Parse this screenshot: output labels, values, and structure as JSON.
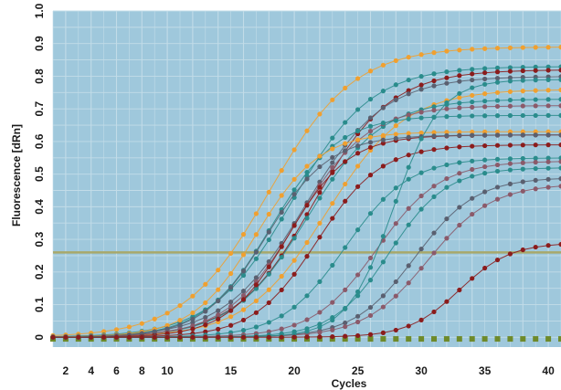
{
  "chart_data": {
    "type": "line",
    "xlabel": "Cycles",
    "ylabel": "Fluorescence [dRn]",
    "xlim": [
      1,
      41
    ],
    "ylim": [
      -0.03,
      1.0
    ],
    "x_ticks": [
      2,
      4,
      6,
      8,
      10,
      15,
      20,
      25,
      30,
      35,
      40
    ],
    "y_ticks": [
      "0",
      "0.1",
      "0.2",
      "0.3",
      "0.4",
      "0.5",
      "0.6",
      "0.7",
      "0.8",
      "0.9",
      "1.0"
    ],
    "y_tick_values": [
      0,
      0.1,
      0.2,
      0.3,
      0.4,
      0.5,
      0.6,
      0.7,
      0.8,
      0.9,
      1.0
    ],
    "grid": true,
    "legend": "none",
    "threshold": 0.26,
    "colors": {
      "plot_bg": "#9fc8dc",
      "grid": "#c2dce8",
      "threshold": "#a8a86a",
      "baseline_marker": "#6e8a2a"
    },
    "series_params": [
      {
        "color": "#f0a030",
        "top": 0.89,
        "mid": 18.0,
        "k": 0.3
      },
      {
        "color": "#2a8c8c",
        "top": 0.83,
        "mid": 19.8,
        "k": 0.32
      },
      {
        "color": "#8b1c1c",
        "top": 0.82,
        "mid": 21.5,
        "k": 0.33
      },
      {
        "color": "#5a6070",
        "top": 0.8,
        "mid": 20.8,
        "k": 0.32
      },
      {
        "color": "#f0a030",
        "top": 0.76,
        "mid": 22.5,
        "k": 0.32
      },
      {
        "color": "#2a8c8c",
        "top": 0.73,
        "mid": 21.0,
        "k": 0.34
      },
      {
        "color": "#8b5a6a",
        "top": 0.71,
        "mid": 20.2,
        "k": 0.36
      },
      {
        "color": "#2a8c8c",
        "top": 0.68,
        "mid": 18.2,
        "k": 0.38
      },
      {
        "color": "#f0a030",
        "top": 0.63,
        "mid": 17.0,
        "k": 0.4
      },
      {
        "color": "#8b1c1c",
        "top": 0.62,
        "mid": 19.5,
        "k": 0.42
      },
      {
        "color": "#5a6070",
        "top": 0.62,
        "mid": 17.8,
        "k": 0.4
      },
      {
        "color": "#8b1c1c",
        "top": 0.59,
        "mid": 21.8,
        "k": 0.4
      },
      {
        "color": "#2a8c8c",
        "top": 0.55,
        "mid": 24.0,
        "k": 0.4
      },
      {
        "color": "#8b5a6a",
        "top": 0.54,
        "mid": 26.5,
        "k": 0.4
      },
      {
        "color": "#2a8c8c",
        "top": 0.52,
        "mid": 27.5,
        "k": 0.45
      },
      {
        "color": "#5a6070",
        "top": 0.49,
        "mid": 29.5,
        "k": 0.42
      },
      {
        "color": "#8b5a6a",
        "top": 0.47,
        "mid": 30.5,
        "k": 0.4
      },
      {
        "color": "#2a8c8c",
        "top": 0.79,
        "mid": 27.8,
        "k": 0.55
      },
      {
        "color": "#8b1c1c",
        "top": 0.29,
        "mid": 33.0,
        "k": 0.5
      }
    ]
  }
}
